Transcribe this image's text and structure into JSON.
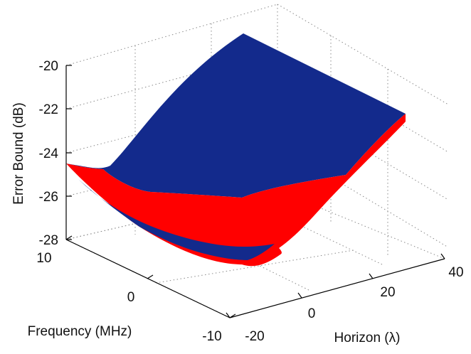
{
  "chart_data": {
    "type": "surface",
    "title": "",
    "xlabel": "Horizon (λ)",
    "ylabel": "Frequency (MHz)",
    "zlabel": "Error Bound (dB)",
    "x_ticks": [
      "-20",
      "0",
      "20",
      "40"
    ],
    "y_ticks": [
      "-10",
      "0",
      "10"
    ],
    "z_ticks": [
      "-20",
      "-22",
      "-24",
      "-26",
      "-28"
    ],
    "xlim": [
      -20,
      40
    ],
    "ylim": [
      -10,
      10
    ],
    "zlim": [
      -28,
      -19
    ],
    "grid": true,
    "series": [
      {
        "color": "#132a8c",
        "corner_values": [
          {
            "x": -20,
            "y": -10,
            "z": -28.0
          },
          {
            "x": 40,
            "y": -10,
            "z": -25.4
          },
          {
            "x": 40,
            "y": 10,
            "z": -19.8
          },
          {
            "x": -20,
            "y": 10,
            "z": -24.6
          }
        ]
      },
      {
        "color": "#ff0000",
        "corner_values": [
          {
            "x": -20,
            "y": -10,
            "z": -28.2
          },
          {
            "x": 40,
            "y": -10,
            "z": -25.5
          },
          {
            "x": 40,
            "y": 10,
            "z": -20.0
          },
          {
            "x": -20,
            "y": 10,
            "z": -24.6
          }
        ]
      }
    ]
  }
}
